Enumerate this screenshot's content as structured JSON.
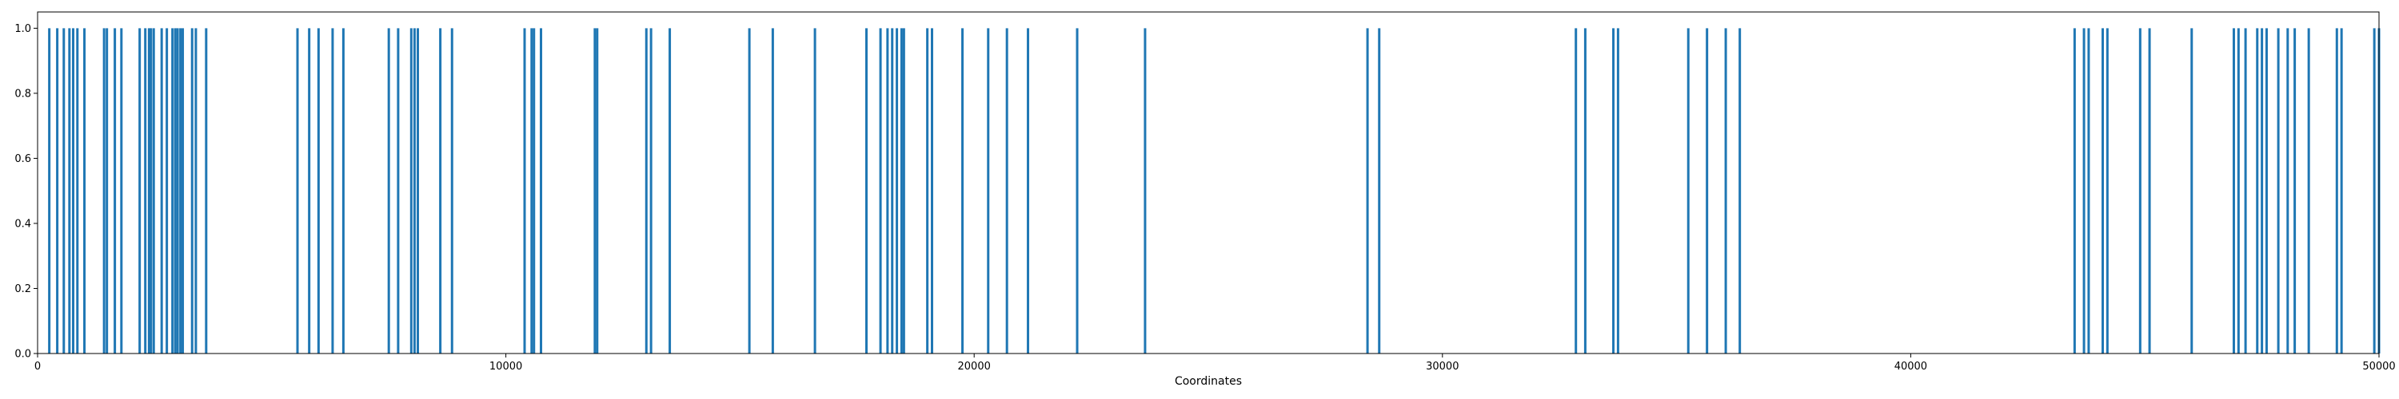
{
  "chart_data": {
    "type": "bar",
    "xlabel": "Coordinates",
    "ylabel": "",
    "xlim": [
      0,
      50000
    ],
    "ylim": [
      0,
      1.05
    ],
    "xticks": [
      0,
      10000,
      20000,
      30000,
      40000,
      50000
    ],
    "xtick_labels": [
      "0",
      "10000",
      "20000",
      "30000",
      "40000",
      "50000"
    ],
    "yticks": [
      0.0,
      0.2,
      0.4,
      0.6,
      0.8,
      1.0
    ],
    "ytick_labels": [
      "0.0",
      "0.2",
      "0.4",
      "0.6",
      "0.8",
      "1.0"
    ],
    "grid": false,
    "bar_color": "#1f77b4",
    "series": [
      {
        "x": [
          250,
          420,
          560,
          680,
          760,
          850,
          1000,
          1420,
          1480,
          1650,
          1790,
          2180,
          2300,
          2380,
          2420,
          2480,
          2650,
          2760,
          2880,
          2940,
          2990,
          3050,
          3100,
          3300,
          3380,
          3600,
          5550,
          5800,
          6000,
          6300,
          6530,
          7500,
          7700,
          7980,
          8050,
          8120,
          8600,
          8850,
          10400,
          10550,
          10600,
          10750,
          11900,
          11950,
          13000,
          13100,
          13500,
          15200,
          15700,
          16600,
          17700,
          18000,
          18150,
          18250,
          18350,
          18450,
          18500,
          19000,
          19100,
          19750,
          20300,
          20700,
          21150,
          22200,
          23650,
          28400,
          28650,
          32850,
          33050,
          33650,
          33750,
          35250,
          35650,
          36050,
          36350,
          43500,
          43700,
          43800,
          44100,
          44200,
          44900,
          45100,
          46000,
          46900,
          47000,
          47150,
          47400,
          47500,
          47600,
          47850,
          48050,
          48200,
          48500,
          49100,
          49200,
          49900,
          50000
        ],
        "values": [
          1,
          1,
          1,
          1,
          1,
          1,
          1,
          1,
          1,
          1,
          1,
          1,
          1,
          1,
          1,
          1,
          1,
          1,
          1,
          1,
          1,
          1,
          1,
          1,
          1,
          1,
          1,
          1,
          1,
          1,
          1,
          1,
          1,
          1,
          1,
          1,
          1,
          1,
          1,
          1,
          1,
          1,
          1,
          1,
          1,
          1,
          1,
          1,
          1,
          1,
          1,
          1,
          1,
          1,
          1,
          1,
          1,
          1,
          1,
          1,
          1,
          1,
          1,
          1,
          1,
          1,
          1,
          1,
          1,
          1,
          1,
          1,
          1,
          1,
          1,
          1,
          1,
          1,
          1,
          1,
          1,
          1,
          1,
          1,
          1,
          1,
          1,
          1,
          1,
          1,
          1,
          1,
          1,
          1,
          1,
          1,
          1
        ]
      }
    ]
  }
}
